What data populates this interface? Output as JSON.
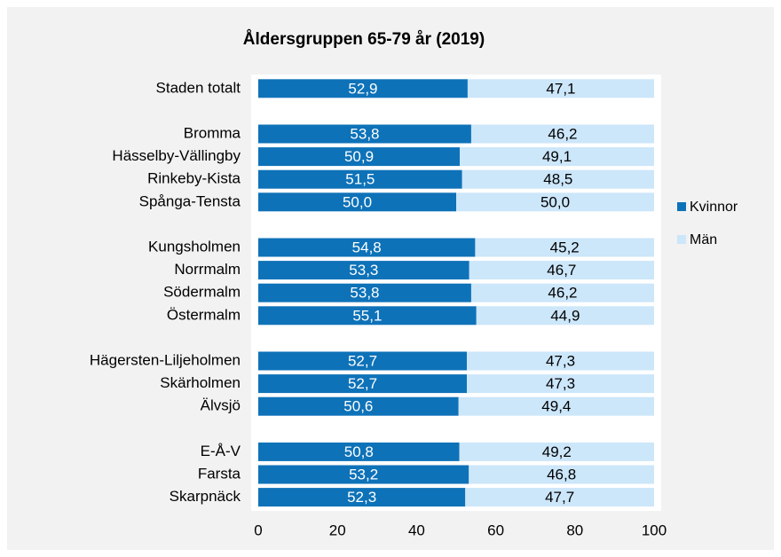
{
  "chart_data": {
    "type": "stacked-barh",
    "title": "Åldersgruppen 65-79 år (2019)",
    "categories": [
      "Staden totalt",
      null,
      "Bromma",
      "Hässelby-Vällingby",
      "Rinkeby-Kista",
      "Spånga-Tensta",
      null,
      "Kungsholmen",
      "Norrmalm",
      "Södermalm",
      "Östermalm",
      null,
      "Hägersten-Liljeholmen",
      "Skärholmen",
      "Älvsjö",
      null,
      "E-Å-V",
      "Farsta",
      "Skarpnäck"
    ],
    "series": [
      {
        "name": "Kvinnor",
        "color": "#0e72b8",
        "values": [
          52.9,
          null,
          53.8,
          50.9,
          51.5,
          50.0,
          null,
          54.8,
          53.3,
          53.8,
          55.1,
          null,
          52.7,
          52.7,
          50.6,
          null,
          50.8,
          53.2,
          52.3
        ],
        "value_labels": [
          "52,9",
          null,
          "53,8",
          "50,9",
          "51,5",
          "50,0",
          null,
          "54,8",
          "53,3",
          "53,8",
          "55,1",
          null,
          "52,7",
          "52,7",
          "50,6",
          null,
          "50,8",
          "53,2",
          "52,3"
        ]
      },
      {
        "name": "Män",
        "color": "#cce6fa",
        "values": [
          47.1,
          null,
          46.2,
          49.1,
          48.5,
          50.0,
          null,
          45.2,
          46.7,
          46.2,
          44.9,
          null,
          47.3,
          47.3,
          49.4,
          null,
          49.2,
          46.8,
          47.7
        ],
        "value_labels": [
          "47,1",
          null,
          "46,2",
          "49,1",
          "48,5",
          "50,0",
          null,
          "45,2",
          "46,7",
          "46,2",
          "44,9",
          null,
          "47,3",
          "47,3",
          "49,4",
          null,
          "49,2",
          "46,8",
          "47,7"
        ]
      }
    ],
    "xlim": [
      0,
      100
    ],
    "xticks": [
      0,
      20,
      40,
      60,
      80,
      100
    ],
    "grid": false,
    "legend": "right"
  }
}
